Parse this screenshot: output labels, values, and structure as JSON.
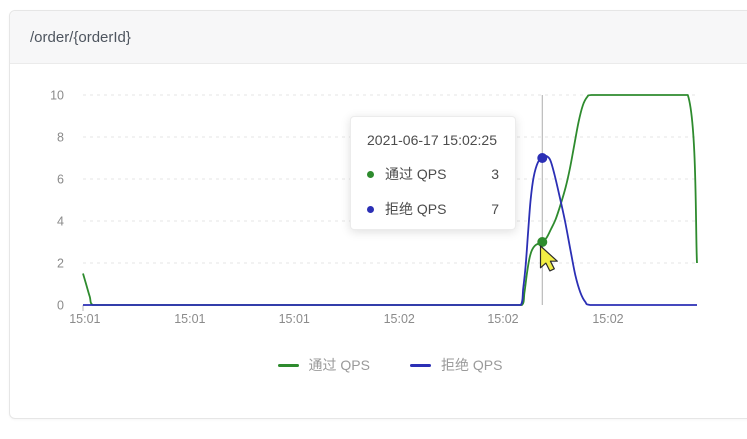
{
  "card": {
    "title": "/order/{orderId}"
  },
  "chart_data": {
    "type": "line",
    "title": "",
    "xlabel": "",
    "ylabel": "",
    "ylim": [
      0,
      10
    ],
    "y_ticks": [
      0,
      2,
      4,
      6,
      8,
      10
    ],
    "x_ticks": [
      {
        "label": "15:01",
        "f": 0.003
      },
      {
        "label": "15:01",
        "f": 0.174
      },
      {
        "label": "15:01",
        "f": 0.344
      },
      {
        "label": "15:02",
        "f": 0.515
      },
      {
        "label": "15:02",
        "f": 0.684
      },
      {
        "label": "15:02",
        "f": 0.855
      }
    ],
    "grid": "horizontal-dashed",
    "legend_position": "bottom",
    "series": [
      {
        "name": "通过 QPS",
        "color": "#2e8b2e",
        "points": [
          [
            0,
            1.5
          ],
          [
            0.005,
            1.0
          ],
          [
            0.011,
            0.4
          ],
          [
            0.016,
            0
          ],
          [
            0.1,
            0
          ],
          [
            0.3,
            0
          ],
          [
            0.5,
            0
          ],
          [
            0.715,
            0
          ],
          [
            0.719,
            0.6
          ],
          [
            0.723,
            1.5
          ],
          [
            0.727,
            2.2
          ],
          [
            0.731,
            2.6
          ],
          [
            0.737,
            2.85
          ],
          [
            0.748,
            3
          ],
          [
            0.755,
            3.2
          ],
          [
            0.762,
            3.6
          ],
          [
            0.77,
            4.1
          ],
          [
            0.778,
            4.8
          ],
          [
            0.786,
            5.6
          ],
          [
            0.793,
            6.5
          ],
          [
            0.8,
            7.6
          ],
          [
            0.807,
            8.7
          ],
          [
            0.814,
            9.5
          ],
          [
            0.821,
            9.9
          ],
          [
            0.828,
            10
          ],
          [
            0.9,
            10
          ],
          [
            0.985,
            10
          ],
          [
            1,
            2
          ]
        ]
      },
      {
        "name": "拒绝 QPS",
        "color": "#2b2fb5",
        "points": [
          [
            0,
            0
          ],
          [
            0.3,
            0
          ],
          [
            0.6,
            0
          ],
          [
            0.713,
            0
          ],
          [
            0.717,
            0.8
          ],
          [
            0.721,
            1.9
          ],
          [
            0.725,
            3.5
          ],
          [
            0.729,
            5.0
          ],
          [
            0.734,
            6.1
          ],
          [
            0.741,
            6.8
          ],
          [
            0.748,
            7
          ],
          [
            0.754,
            7.1
          ],
          [
            0.761,
            6.9
          ],
          [
            0.768,
            6.2
          ],
          [
            0.776,
            5.2
          ],
          [
            0.785,
            4.0
          ],
          [
            0.794,
            2.6
          ],
          [
            0.802,
            1.4
          ],
          [
            0.81,
            0.6
          ],
          [
            0.818,
            0.15
          ],
          [
            0.826,
            0
          ],
          [
            0.9,
            0
          ],
          [
            1,
            0
          ]
        ]
      }
    ],
    "hover": {
      "f": 0.748,
      "datetime": "2021-06-17 15:02:25",
      "points": [
        {
          "series": "通过 QPS",
          "value": 3
        },
        {
          "series": "拒绝 QPS",
          "value": 7
        }
      ]
    }
  },
  "tooltip": {
    "datetime": "2021-06-17 15:02:25",
    "rows": [
      {
        "label": "通过 QPS",
        "value": "3",
        "color": "#2e8b2e"
      },
      {
        "label": "拒绝 QPS",
        "value": "7",
        "color": "#2b2fb5"
      }
    ]
  },
  "legend": {
    "items": [
      {
        "label": "通过 QPS",
        "color": "#2e8b2e"
      },
      {
        "label": "拒绝 QPS",
        "color": "#2b2fb5"
      }
    ]
  }
}
